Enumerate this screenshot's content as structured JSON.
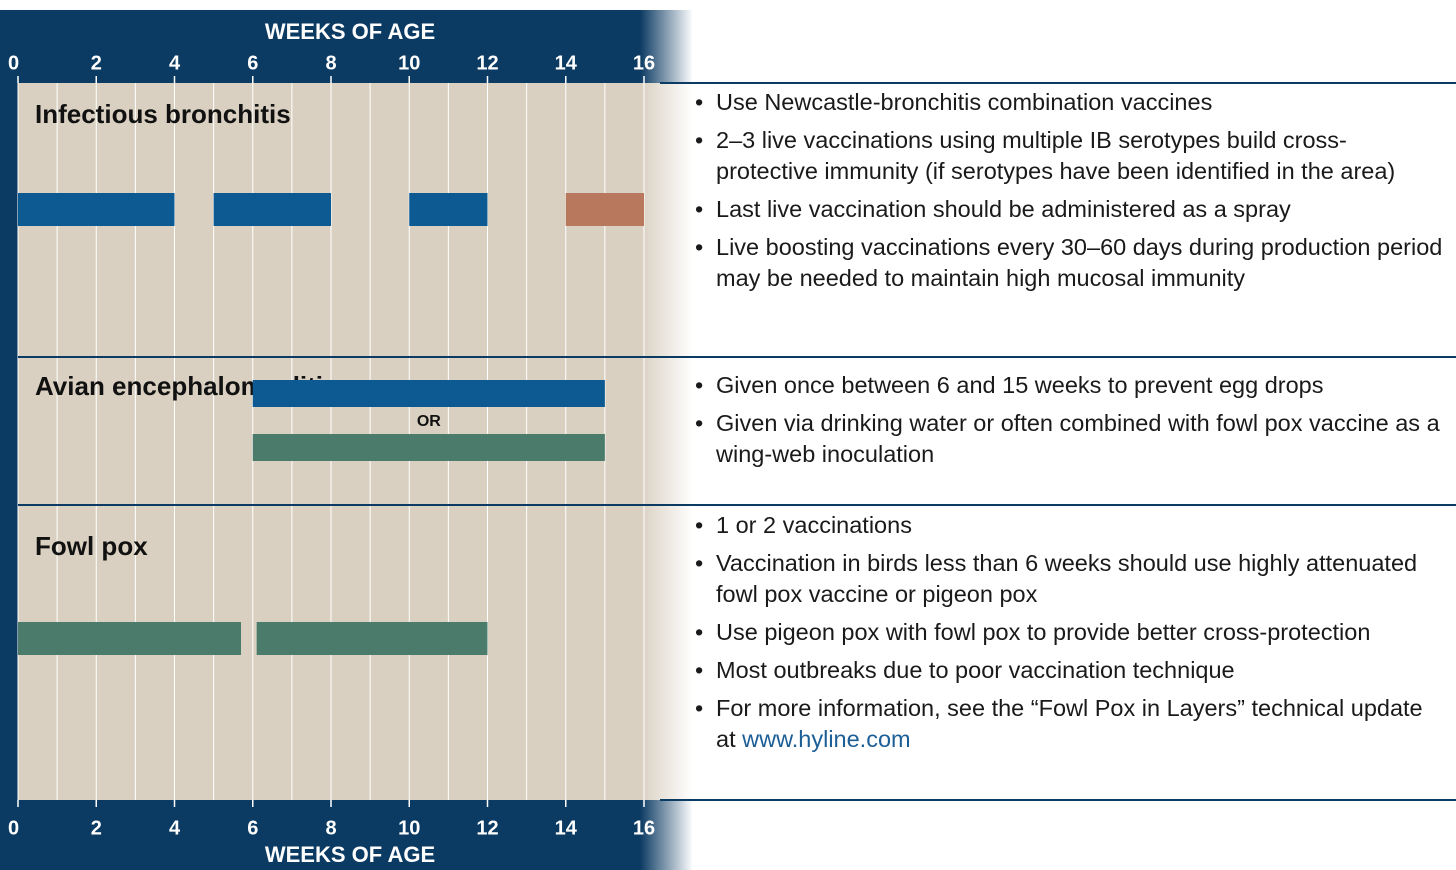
{
  "axis": {
    "label": "WEEKS OF AGE",
    "xlim": [
      0,
      16
    ],
    "xticks": [
      0,
      2,
      4,
      6,
      8,
      10,
      12,
      14,
      16
    ]
  },
  "sections": [
    {
      "title": "Infectious bronchitis",
      "bars": [
        {
          "start": 0,
          "end": 4,
          "color": "#0d5a92"
        },
        {
          "start": 5,
          "end": 8,
          "color": "#0d5a92"
        },
        {
          "start": 10,
          "end": 12,
          "color": "#0d5a92"
        },
        {
          "start": 14,
          "end": 16,
          "color": "#b8785e"
        }
      ],
      "notes": [
        "Use Newcastle-bronchitis combination vaccines",
        "2–3 live vaccinations using multiple IB serotypes build cross-protective immunity (if serotypes have been identified in the area)",
        "Last live vaccination should be administered as a spray",
        "Live boosting vaccinations every 30–60 days during production period may be needed to maintain high mucosal immunity"
      ]
    },
    {
      "title": "Avian encephalomyelitis",
      "bars": [
        {
          "start": 6,
          "end": 15,
          "color": "#0d5a92"
        },
        {
          "start": 6,
          "end": 15,
          "color": "#4a7b6b"
        }
      ],
      "separator": "OR",
      "notes": [
        "Given once between 6 and 15 weeks to prevent egg drops",
        "Given via drinking water or often combined with fowl pox vaccine as a wing-web inoculation"
      ]
    },
    {
      "title": "Fowl pox",
      "bars": [
        {
          "start": 0,
          "end": 5.7,
          "color": "#4a7b6b"
        },
        {
          "start": 6.1,
          "end": 12,
          "color": "#4a7b6b"
        }
      ],
      "notes": [
        "1 or 2 vaccinations",
        "Vaccination in birds less than 6 weeks should use highly attenuated fowl pox vaccine or pigeon pox",
        "Use pigeon pox with fowl pox to provide better cross-protection",
        "Most outbreaks due to poor vaccination technique",
        "For more information, see the “Fowl Pox in Layers” technical update at"
      ],
      "link": "www.hyline.com"
    }
  ]
}
